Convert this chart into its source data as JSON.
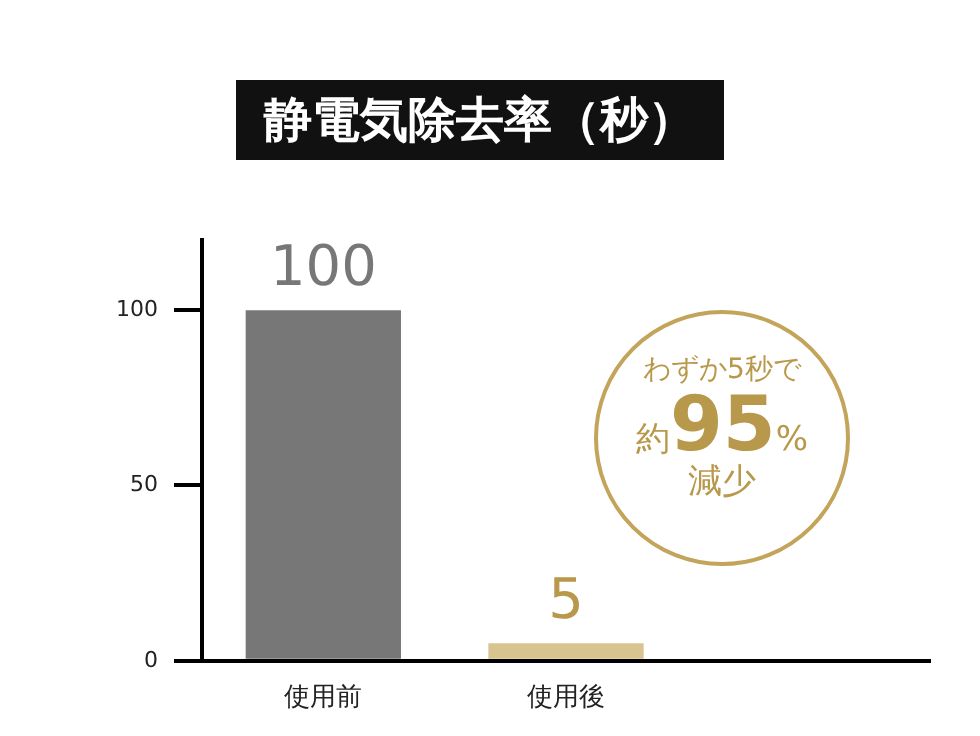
{
  "chart_data": {
    "type": "bar",
    "title": "静電気除去率（秒）",
    "categories": [
      "使用前",
      "使用後",
      null
    ],
    "values": [
      100,
      5,
      null
    ],
    "colors": [
      "#777777",
      "#d8c48f",
      "#ffffff"
    ],
    "ylim": [
      0,
      120
    ],
    "yticks": [
      0,
      50,
      100
    ],
    "grid": false,
    "legend": false,
    "data_labels": true,
    "annotations": [
      "わずか5秒で",
      "約95%減少"
    ]
  }
}
